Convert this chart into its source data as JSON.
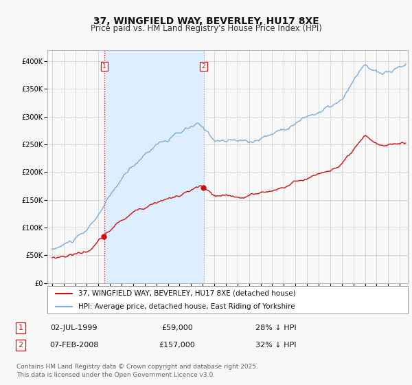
{
  "title": "37, WINGFIELD WAY, BEVERLEY, HU17 8XE",
  "subtitle": "Price paid vs. HM Land Registry's House Price Index (HPI)",
  "ylim": [
    0,
    420000
  ],
  "yticks": [
    0,
    50000,
    100000,
    150000,
    200000,
    250000,
    300000,
    350000,
    400000
  ],
  "ytick_labels": [
    "£0",
    "£50K",
    "£100K",
    "£150K",
    "£200K",
    "£250K",
    "£300K",
    "£350K",
    "£400K"
  ],
  "hpi_color": "#7aacdc",
  "price_color": "#cc1111",
  "vline1_color": "#cc1111",
  "vline2_color": "#aaaaaa",
  "vline_style": ":",
  "shade_color": "#ddeeff",
  "grid_color": "#cccccc",
  "background_color": "#f8f8f8",
  "legend_label_price": "37, WINGFIELD WAY, BEVERLEY, HU17 8XE (detached house)",
  "legend_label_hpi": "HPI: Average price, detached house, East Riding of Yorkshire",
  "sale1_year": 1999.5,
  "sale1_price": 59000,
  "sale1_label": "1",
  "sale2_year": 2008.08,
  "sale2_price": 157000,
  "sale2_label": "2",
  "table_rows": [
    {
      "num": "1",
      "date": "02-JUL-1999",
      "price": "£59,000",
      "hpi": "28% ↓ HPI"
    },
    {
      "num": "2",
      "date": "07-FEB-2008",
      "price": "£157,000",
      "hpi": "32% ↓ HPI"
    }
  ],
  "footer": "Contains HM Land Registry data © Crown copyright and database right 2025.\nThis data is licensed under the Open Government Licence v3.0.",
  "title_fontsize": 10,
  "subtitle_fontsize": 8.5,
  "tick_fontsize": 7,
  "legend_fontsize": 7.5,
  "table_fontsize": 8,
  "footer_fontsize": 6.5
}
